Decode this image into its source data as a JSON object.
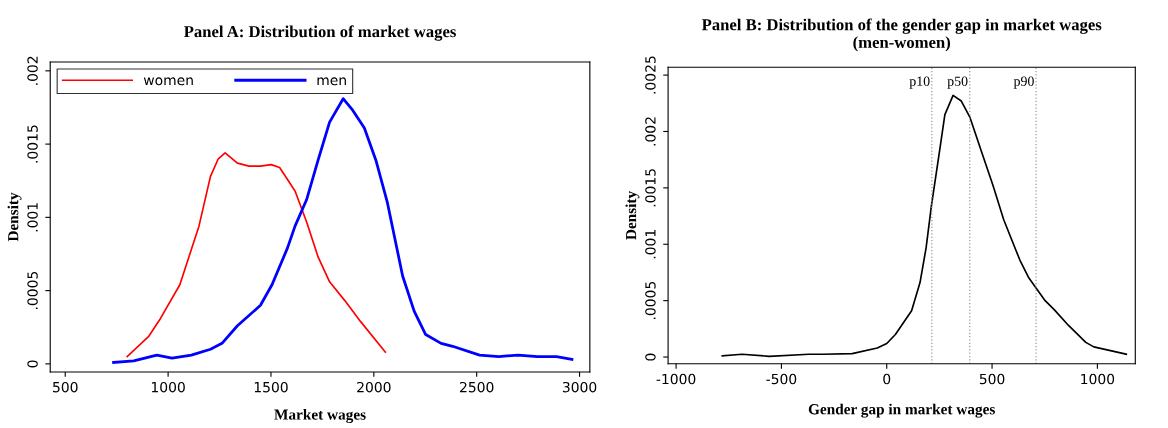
{
  "chart_data": [
    {
      "type": "line",
      "title": "Panel A: Distribution of market wages",
      "xlabel": "Market wages",
      "ylabel": "Density",
      "xlim": [
        427,
        3050
      ],
      "ylim": [
        -5.5e-05,
        0.00206
      ],
      "xticks": [
        500,
        1000,
        1500,
        2000,
        2500,
        3000
      ],
      "yticks": [
        {
          "value": 0,
          "label": "0"
        },
        {
          "value": 0.0005,
          "label": ".0005"
        },
        {
          "value": 0.001,
          "label": ".001"
        },
        {
          "value": 0.0015,
          "label": ".0015"
        },
        {
          "value": 0.002,
          "label": ".002"
        }
      ],
      "grid": false,
      "legend": "top left",
      "series": [
        {
          "name": "women",
          "color": "#ff0000",
          "x": [
            801,
            907,
            963,
            1057,
            1150,
            1206,
            1244,
            1277,
            1337,
            1393,
            1449,
            1501,
            1542,
            1617,
            1673,
            1729,
            1785,
            1860,
            1935,
            2056
          ],
          "values": [
            5e-05,
            0.00019,
            0.00031,
            0.00054,
            0.00094,
            0.00128,
            0.0014,
            0.00144,
            0.00137,
            0.00135,
            0.00135,
            0.00136,
            0.00134,
            0.00118,
            0.00097,
            0.00073,
            0.00056,
            0.00043,
            0.00029,
            8e-05
          ]
        },
        {
          "name": "men",
          "color": "#0000ff",
          "x": [
            735,
            833,
            945,
            1019,
            1113,
            1206,
            1262,
            1337,
            1449,
            1505,
            1580,
            1617,
            1673,
            1729,
            1785,
            1851,
            1898,
            1954,
            2010,
            2066,
            2140,
            2196,
            2252,
            2327,
            2383,
            2514,
            2608,
            2701,
            2795,
            2888,
            2963
          ],
          "values": [
            1e-05,
            2e-05,
            6e-05,
            4e-05,
            6e-05,
            0.0001,
            0.00014,
            0.00026,
            0.0004,
            0.00054,
            0.00079,
            0.00094,
            0.00112,
            0.00139,
            0.00165,
            0.00181,
            0.00173,
            0.00161,
            0.00139,
            0.0011,
            0.0006,
            0.00036,
            0.0002,
            0.00014,
            0.00012,
            6e-05,
            5e-05,
            6e-05,
            5e-05,
            5e-05,
            3e-05
          ]
        }
      ]
    },
    {
      "type": "line",
      "title": "Panel B: Distribution of the gender gap in market wages\n(men-women)",
      "xlabel": "Gender gap in market wages",
      "ylabel": "Density",
      "xlim": [
        -1038,
        1180
      ],
      "ylim": [
        -6e-05,
        0.00257
      ],
      "xticks": [
        {
          "value": -1000,
          "label": "-1000"
        },
        {
          "value": -500,
          "label": "-500"
        },
        0,
        500,
        1000
      ],
      "yticks": [
        {
          "value": 0,
          "label": "0"
        },
        {
          "value": 0.0005,
          "label": ".0005"
        },
        {
          "value": 0.001,
          "label": ".001"
        },
        {
          "value": 0.0015,
          "label": ".0015"
        },
        {
          "value": 0.002,
          "label": ".002"
        },
        {
          "value": 0.0025,
          "label": ".0025"
        }
      ],
      "grid": false,
      "series": [
        {
          "color": "#000000",
          "x": [
            -781,
            -687,
            -558,
            -370,
            -301,
            -164,
            -45,
            0,
            41,
            118,
            158,
            187,
            212,
            247,
            276,
            315,
            354,
            394,
            452,
            503,
            555,
            589,
            632,
            675,
            752,
            795,
            863,
            945,
            983,
            1137
          ],
          "values": [
            1e-05,
            2.5e-05,
            6e-06,
            2.5e-05,
            2.5e-05,
            3e-05,
            8e-05,
            0.00012,
            0.0002,
            0.00041,
            0.00066,
            0.00097,
            0.00134,
            0.00178,
            0.00215,
            0.00232,
            0.00227,
            0.00213,
            0.00181,
            0.00153,
            0.00122,
            0.00106,
            0.00086,
            0.0007,
            0.0005,
            0.00042,
            0.00028,
            0.00013,
            9e-05,
            2.5e-05
          ]
        }
      ],
      "ref_lines": [
        {
          "axis": "x",
          "value": 214,
          "label": "p10",
          "color": "#999999",
          "line_style": "dotted"
        },
        {
          "axis": "x",
          "value": 394,
          "label": "p50",
          "color": "#999999",
          "line_style": "dotted"
        },
        {
          "axis": "x",
          "value": 709,
          "label": "p90",
          "color": "#999999",
          "line_style": "dotted"
        }
      ]
    }
  ]
}
